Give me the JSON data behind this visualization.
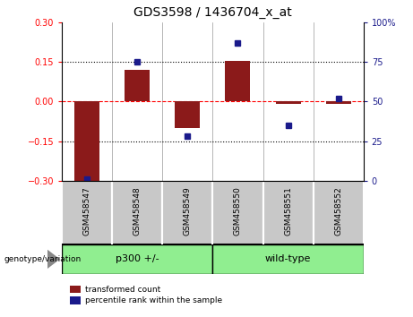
{
  "title": "GDS3598 / 1436704_x_at",
  "samples": [
    "GSM458547",
    "GSM458548",
    "GSM458549",
    "GSM458550",
    "GSM458551",
    "GSM458552"
  ],
  "red_values": [
    -0.3,
    0.12,
    -0.1,
    0.155,
    -0.01,
    -0.01
  ],
  "blue_values_pct": [
    1,
    75,
    28,
    87,
    35,
    52
  ],
  "group1_label": "p300 +/-",
  "group1_indices": [
    0,
    1,
    2
  ],
  "group2_label": "wild-type",
  "group2_indices": [
    3,
    4,
    5
  ],
  "green_color": "#90EE90",
  "ylim_left": [
    -0.3,
    0.3
  ],
  "ylim_right": [
    0,
    100
  ],
  "yticks_left": [
    -0.3,
    -0.15,
    0,
    0.15,
    0.3
  ],
  "yticks_right": [
    0,
    25,
    50,
    75,
    100
  ],
  "bar_color": "#8B1A1A",
  "dot_color": "#1A1A8B",
  "bar_width": 0.5,
  "group_label": "genotype/variation",
  "legend_red": "transformed count",
  "legend_blue": "percentile rank within the sample",
  "title_fontsize": 10,
  "tick_fontsize": 7,
  "label_fontsize": 7,
  "gray_color": "#C8C8C8",
  "n_samples": 6
}
